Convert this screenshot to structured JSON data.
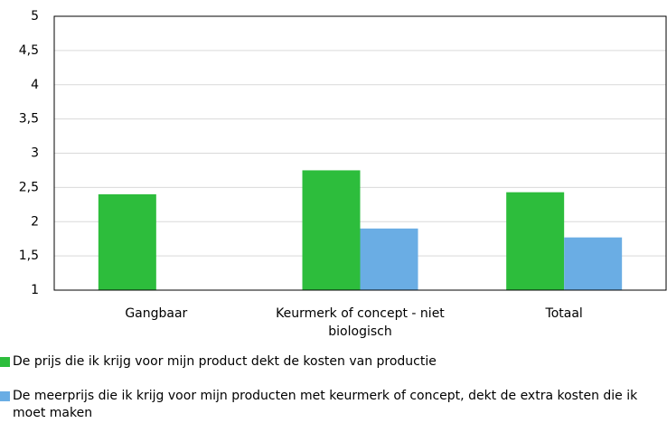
{
  "chart_data": {
    "type": "bar",
    "categories": [
      "Gangbaar",
      "Keurmerk of concept - niet biologisch",
      "Totaal"
    ],
    "series": [
      {
        "name": "De prijs die ik krijg voor mijn product dekt de kosten van productie",
        "color": "#2dbd3c",
        "values": [
          2.4,
          2.75,
          2.43
        ]
      },
      {
        "name": "De meerprijs die ik krijg voor mijn producten met keurmerk of concept, dekt de extra kosten die ik moet maken",
        "color": "#6aade4",
        "values": [
          null,
          1.9,
          1.77
        ]
      }
    ],
    "ylim": [
      1,
      5
    ],
    "yticks": [
      1,
      {
        "value": 1.5,
        "label": "1,5"
      },
      2,
      {
        "value": 2.5,
        "label": "2,5"
      },
      3,
      {
        "value": 3.5,
        "label": "3,5"
      },
      4,
      {
        "value": 4.5,
        "label": "4,5"
      },
      5
    ],
    "grid": true,
    "legend": "bottom"
  }
}
